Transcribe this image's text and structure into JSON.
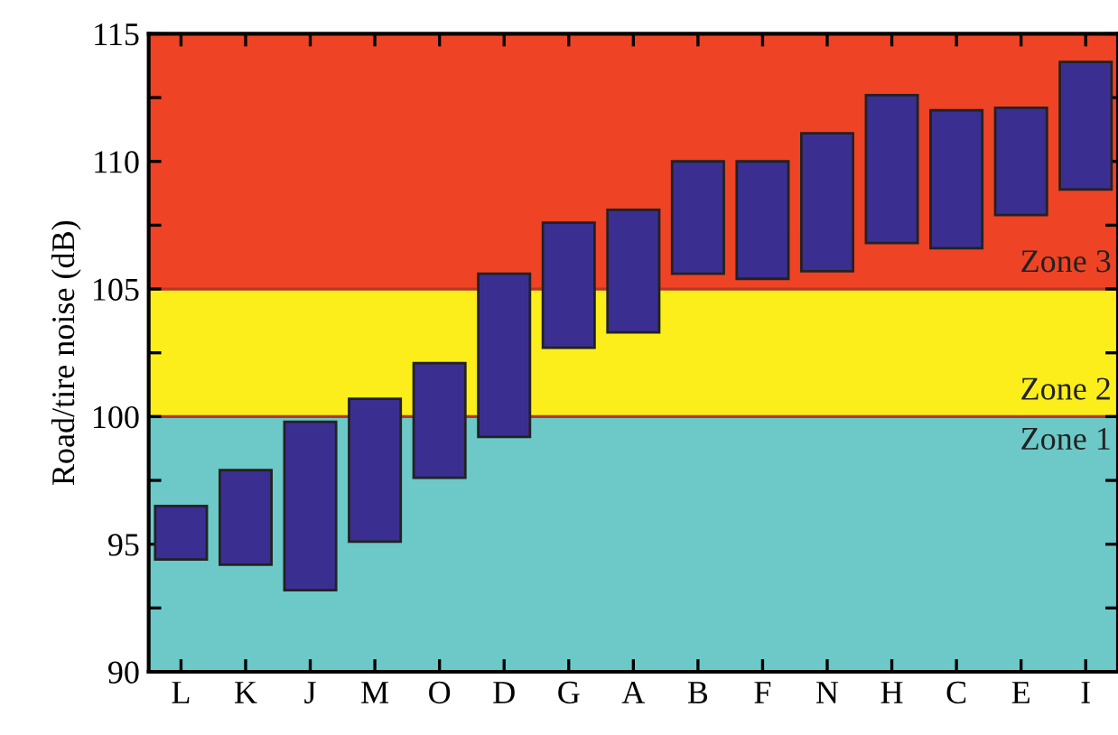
{
  "chart_data": {
    "type": "bar",
    "ylabel": "Road/tire noise (dB)",
    "categories": [
      "L",
      "K",
      "J",
      "M",
      "O",
      "D",
      "G",
      "A",
      "B",
      "F",
      "N",
      "H",
      "C",
      "E",
      "I"
    ],
    "base": [
      94.4,
      94.2,
      93.2,
      95.1,
      97.6,
      99.2,
      102.7,
      103.3,
      105.6,
      105.4,
      105.7,
      106.8,
      106.6,
      107.9,
      108.9
    ],
    "values": [
      2.1,
      3.7,
      6.6,
      5.6,
      4.5,
      6.4,
      4.9,
      4.8,
      4.4,
      4.6,
      5.4,
      5.8,
      5.4,
      4.2,
      5.0
    ],
    "color": "#3a2f91",
    "ylim": [
      90,
      115
    ],
    "yticks": [
      90,
      {
        "value": 92.5,
        "label": null
      },
      95,
      {
        "value": 97.5,
        "label": null
      },
      100,
      {
        "value": 102.5,
        "label": null
      },
      105,
      {
        "value": 107.5,
        "label": null
      },
      110,
      {
        "value": 112.5,
        "label": null
      },
      115
    ],
    "bands": [
      {
        "axis": "y",
        "from": 90,
        "to": 100,
        "label": "Zone 1",
        "color": "#6cc9c8"
      },
      {
        "axis": "y",
        "from": 100,
        "to": 105,
        "label": "Zone 2",
        "color": "#fcee1a"
      },
      {
        "axis": "y",
        "from": 105,
        "to": 115,
        "label": "Zone 3",
        "color": "#ee4325"
      }
    ],
    "ref_lines": [
      {
        "axis": "y",
        "value": 100,
        "label": null,
        "color": "#b8352a"
      },
      {
        "axis": "y",
        "value": 105,
        "label": null,
        "color": "#b8352a"
      }
    ],
    "grid": false,
    "legend": false
  }
}
